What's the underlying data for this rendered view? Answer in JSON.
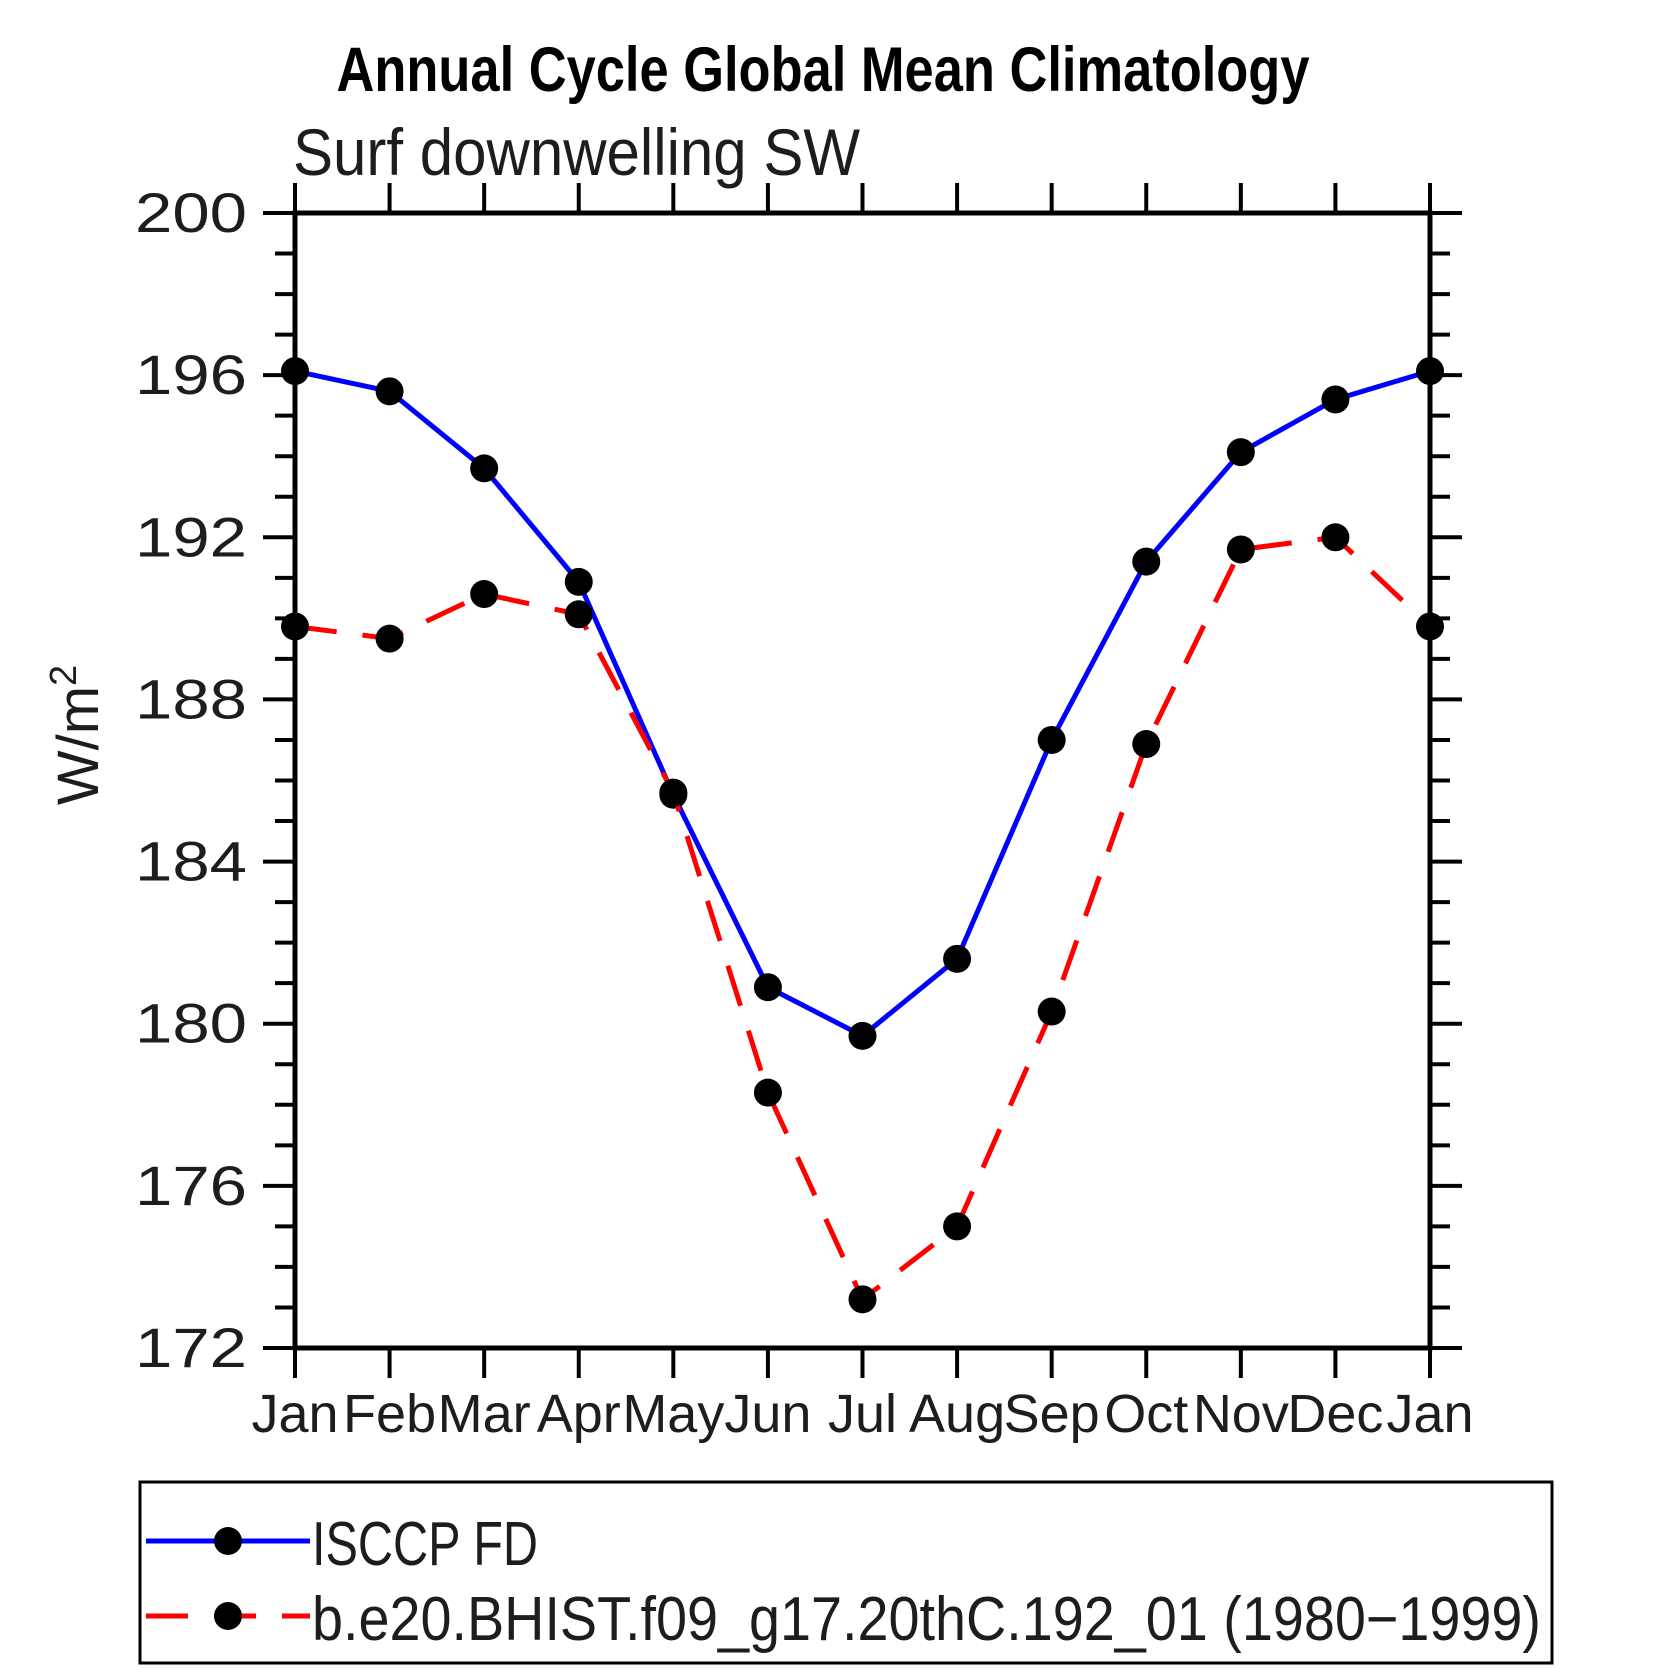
{
  "page": {
    "background": "#ffffff"
  },
  "chart_data": {
    "type": "line",
    "title": "Annual Cycle Global Mean Climatology",
    "subtitle": "Surf downwelling SW",
    "ylabel": "W/m",
    "ylabel_superscript": "2",
    "x_categories": [
      "Jan",
      "Feb",
      "Mar",
      "Apr",
      "May",
      "Jun",
      "Jul",
      "Aug",
      "Sep",
      "Oct",
      "Nov",
      "Dec",
      "Jan"
    ],
    "ylim": [
      172,
      200
    ],
    "ytick_major_step": 4,
    "ytick_minor_step": 1,
    "ytick_labels": [
      "200",
      "196",
      "192",
      "188",
      "184",
      "180",
      "176",
      "172"
    ],
    "grid": "off",
    "legend_position": "bottom-left-box",
    "axis_color": "#000000",
    "marker_color": "#000000",
    "series": [
      {
        "name": "ISCCP FD",
        "color": "#0000ff",
        "line_style": "solid",
        "marker": "filled-circle",
        "values": [
          196.1,
          195.6,
          193.7,
          190.9,
          185.65,
          180.9,
          179.7,
          181.6,
          187.0,
          191.4,
          194.1,
          195.4,
          196.1
        ]
      },
      {
        "name": "b.e20.BHIST.f09_g17.20thC.192_01 (1980−1999)",
        "color": "#ff0000",
        "line_style": "dashed",
        "marker": "filled-circle",
        "values": [
          189.8,
          189.5,
          190.6,
          190.1,
          185.7,
          178.3,
          173.2,
          175.0,
          180.3,
          186.9,
          191.7,
          192.0,
          189.8
        ]
      }
    ]
  }
}
